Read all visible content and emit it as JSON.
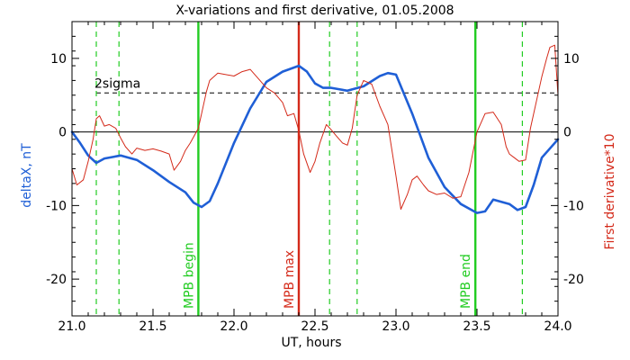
{
  "chart_data": {
    "type": "line",
    "title": "X-variations and first derivative, 01.05.2008",
    "xlabel": "UT, hours",
    "ylabel_left": "deltaX, nT",
    "ylabel_right": "First derivative*10",
    "xlim": [
      21.0,
      24.0
    ],
    "ylim": [
      -25,
      15
    ],
    "x_ticks": [
      21.0,
      21.5,
      22.0,
      22.5,
      23.0,
      23.5,
      24.0
    ],
    "x_tick_labels": [
      "21.0",
      "21.5",
      "22.0",
      "22.5",
      "23.0",
      "23.5",
      "24.0"
    ],
    "y_ticks": [
      10,
      0,
      -10,
      -20
    ],
    "y_tick_labels": [
      "10",
      "0",
      "-10",
      "-20"
    ],
    "sigma_level": 5.3,
    "sigma_label": "2sigma",
    "colors": {
      "deltaX": "#1f5fd6",
      "derivative": "#d42a1a",
      "green": "#22cc22",
      "red_line": "#d42a1a",
      "left_label": "#1f5fd6",
      "right_label": "#d42a1a"
    },
    "vertical_markers": [
      {
        "x": 21.78,
        "label": "MPB begin",
        "color": "#22cc22",
        "style": "solid"
      },
      {
        "x": 22.4,
        "label": "MPB max",
        "color": "#d42a1a",
        "style": "solid"
      },
      {
        "x": 23.49,
        "label": "MPB end",
        "color": "#22cc22",
        "style": "solid"
      }
    ],
    "dashed_verticals": [
      21.15,
      21.29,
      22.59,
      22.76,
      23.78
    ],
    "series": [
      {
        "name": "deltaX",
        "color": "#1f5fd6",
        "x": [
          21.0,
          21.05,
          21.1,
          21.15,
          21.2,
          21.3,
          21.4,
          21.5,
          21.6,
          21.7,
          21.75,
          21.8,
          21.85,
          21.9,
          22.0,
          22.1,
          22.2,
          22.3,
          22.4,
          22.45,
          22.5,
          22.55,
          22.6,
          22.7,
          22.8,
          22.9,
          22.95,
          23.0,
          23.1,
          23.2,
          23.3,
          23.4,
          23.5,
          23.55,
          23.6,
          23.7,
          23.75,
          23.8,
          23.85,
          23.9,
          24.0
        ],
        "y": [
          0,
          -1.5,
          -3.2,
          -4.2,
          -3.6,
          -3.2,
          -3.8,
          -5.2,
          -6.8,
          -8.2,
          -9.6,
          -10.2,
          -9.4,
          -7.0,
          -1.5,
          3.2,
          6.8,
          8.2,
          9.0,
          8.2,
          6.6,
          6.0,
          6.0,
          5.6,
          6.2,
          7.6,
          8.0,
          7.8,
          2.5,
          -3.5,
          -7.5,
          -9.8,
          -11.0,
          -10.8,
          -9.2,
          -9.8,
          -10.6,
          -10.2,
          -7.2,
          -3.5,
          -1.0
        ]
      },
      {
        "name": "derivative",
        "color": "#d42a1a",
        "x": [
          21.0,
          21.03,
          21.07,
          21.1,
          21.13,
          21.15,
          21.17,
          21.2,
          21.23,
          21.27,
          21.3,
          21.33,
          21.37,
          21.4,
          21.45,
          21.5,
          21.55,
          21.6,
          21.63,
          21.67,
          21.7,
          21.73,
          21.78,
          21.8,
          21.83,
          21.85,
          21.9,
          22.0,
          22.05,
          22.1,
          22.2,
          22.25,
          22.3,
          22.33,
          22.37,
          22.4,
          22.43,
          22.47,
          22.5,
          22.53,
          22.57,
          22.6,
          22.63,
          22.67,
          22.7,
          22.73,
          22.76,
          22.8,
          22.85,
          22.9,
          22.95,
          23.0,
          23.03,
          23.07,
          23.1,
          23.13,
          23.17,
          23.2,
          23.25,
          23.3,
          23.35,
          23.4,
          23.45,
          23.5,
          23.55,
          23.6,
          23.65,
          23.68,
          23.7,
          23.73,
          23.76,
          23.8,
          23.83,
          23.87,
          23.9,
          23.93,
          23.95,
          23.98,
          24.0
        ],
        "y": [
          -5.0,
          -7.2,
          -6.5,
          -4.0,
          -1.0,
          1.8,
          2.2,
          0.8,
          1.0,
          0.5,
          -0.8,
          -2.0,
          -3.0,
          -2.2,
          -2.5,
          -2.3,
          -2.6,
          -3.0,
          -5.2,
          -4.0,
          -2.5,
          -1.5,
          0.5,
          2.5,
          5.5,
          7.0,
          8.0,
          7.6,
          8.2,
          8.5,
          6.0,
          5.3,
          4.0,
          2.2,
          2.5,
          0.2,
          -3.0,
          -5.5,
          -4.0,
          -1.5,
          1.0,
          0.3,
          -0.5,
          -1.5,
          -1.8,
          0.5,
          5.0,
          7.0,
          6.5,
          3.5,
          1.0,
          -6.0,
          -10.5,
          -8.5,
          -6.5,
          -6.0,
          -7.2,
          -8.0,
          -8.5,
          -8.3,
          -9.0,
          -8.8,
          -5.5,
          0.0,
          2.5,
          2.7,
          1.0,
          -2.0,
          -3.0,
          -3.5,
          -4.0,
          -3.8,
          0.5,
          4.5,
          7.5,
          10.0,
          11.5,
          11.8,
          5.0
        ]
      }
    ]
  }
}
